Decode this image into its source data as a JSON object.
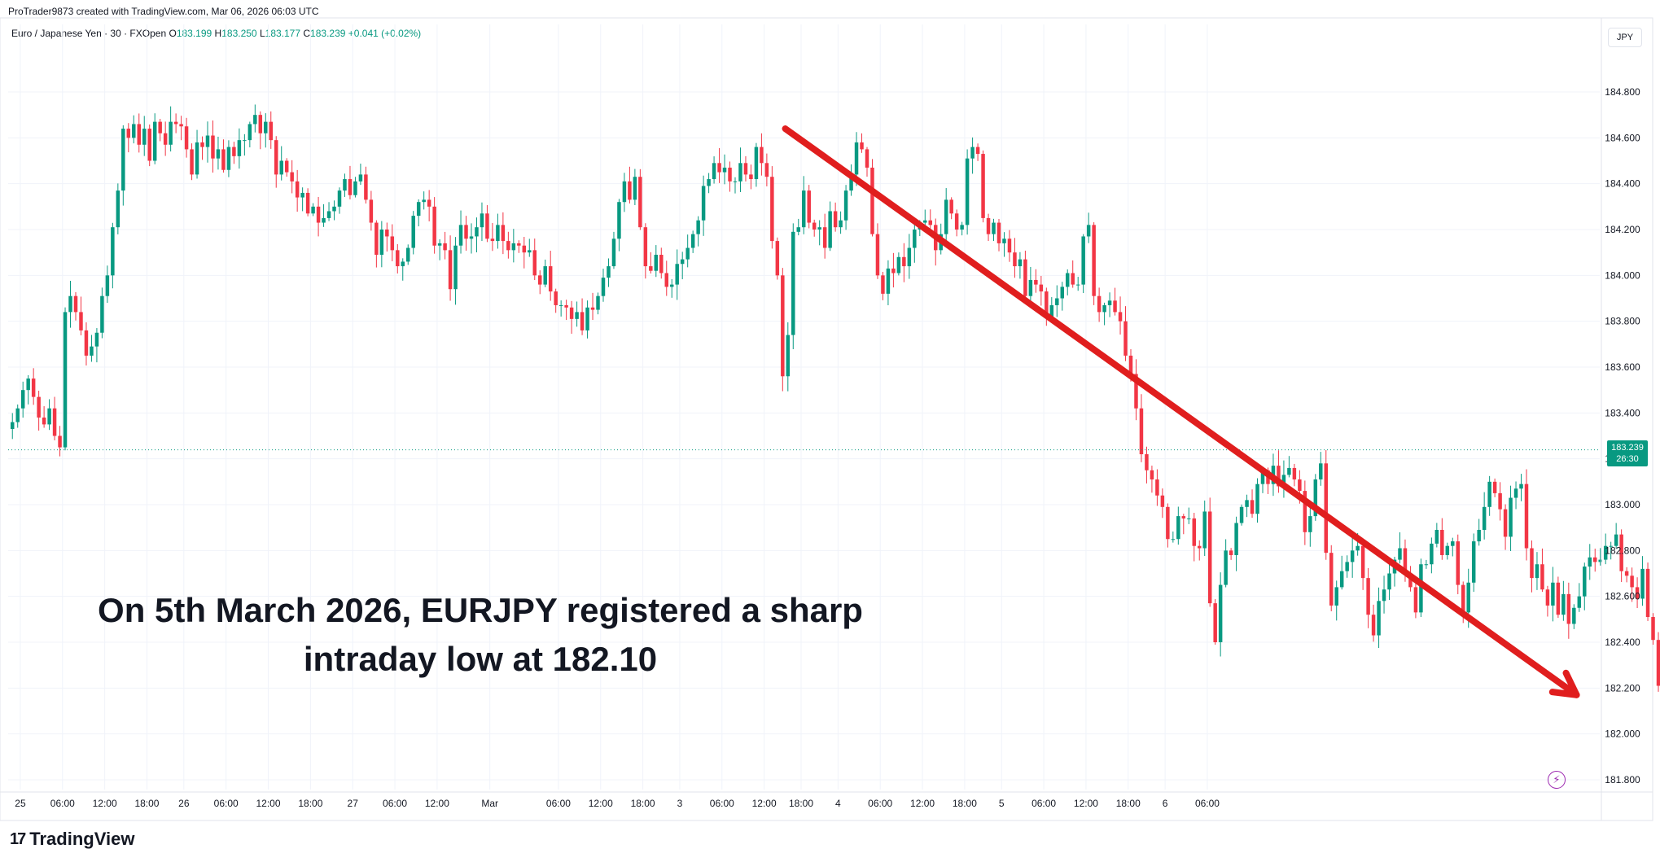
{
  "header": {
    "attribution": "ProTrader9873 created with TradingView.com, Mar 06, 2026 06:03 UTC"
  },
  "legend": {
    "symbol": "Euro / Japanese Yen · 30 · FXOpen",
    "open_label": "O",
    "open": "183.199",
    "high_label": "H",
    "high": "183.250",
    "low_label": "L",
    "low": "183.177",
    "close_label": "C",
    "close": "183.239",
    "change": "+0.041 (+0.02%)"
  },
  "currency": "JPY",
  "price_tag": {
    "price": "183.239",
    "countdown": "26:30"
  },
  "annotation": {
    "line1": "On 5th March 2026, EURJPY registered a sharp",
    "line2": "intraday low at 182.10"
  },
  "branding": {
    "logo": "17",
    "name": "TradingView"
  },
  "colors": {
    "up": "#089981",
    "down": "#f23645",
    "arrow": "#e01e1e",
    "grid": "#f0f3fa",
    "axis_text": "#131722"
  },
  "chart_data": {
    "type": "candlestick",
    "interval": "30",
    "ylim": [
      181.8,
      184.9
    ],
    "y_ticks": [
      "184.800",
      "184.600",
      "184.400",
      "184.200",
      "184.000",
      "183.800",
      "183.600",
      "183.400",
      "183.200",
      "183.000",
      "182.800",
      "182.600",
      "182.400",
      "182.200",
      "182.000",
      "181.800"
    ],
    "x_ticks": [
      "25",
      "06:00",
      "12:00",
      "18:00",
      "26",
      "06:00",
      "12:00",
      "18:00",
      "27",
      "06:00",
      "12:00",
      "Mar",
      "06:00",
      "12:00",
      "18:00",
      "3",
      "06:00",
      "12:00",
      "18:00",
      "4",
      "06:00",
      "12:00",
      "18:00",
      "5",
      "06:00",
      "12:00",
      "18:00",
      "6",
      "06:00"
    ],
    "last_price": 183.239,
    "annotation_arrow": {
      "from": {
        "bar_index": 147,
        "price": 184.64
      },
      "to": {
        "bar_index": 297,
        "price": 182.17
      }
    },
    "closes": [
      183.36,
      183.42,
      183.5,
      183.55,
      183.47,
      183.38,
      183.35,
      183.42,
      183.3,
      183.25,
      183.84,
      183.91,
      183.84,
      183.76,
      183.65,
      183.69,
      183.75,
      183.91,
      184.0,
      184.21,
      184.37,
      184.64,
      184.6,
      184.66,
      184.57,
      184.64,
      184.5,
      184.67,
      184.62,
      184.57,
      184.67,
      184.66,
      184.65,
      184.55,
      184.44,
      184.58,
      184.56,
      184.61,
      184.51,
      184.55,
      184.46,
      184.56,
      184.52,
      184.59,
      184.59,
      184.66,
      184.7,
      184.62,
      184.67,
      184.59,
      184.44,
      184.5,
      184.45,
      184.41,
      184.34,
      184.36,
      184.27,
      184.3,
      184.23,
      184.25,
      184.28,
      184.3,
      184.37,
      184.42,
      184.35,
      184.41,
      184.44,
      184.33,
      184.23,
      184.09,
      184.2,
      184.17,
      184.11,
      184.04,
      184.06,
      184.12,
      184.26,
      184.32,
      184.33,
      184.3,
      184.13,
      184.14,
      184.11,
      183.94,
      184.13,
      184.22,
      184.16,
      184.17,
      184.21,
      184.27,
      184.16,
      184.15,
      184.22,
      184.15,
      184.11,
      184.14,
      184.13,
      184.1,
      184.11,
      184.0,
      183.96,
      184.04,
      183.93,
      183.87,
      183.87,
      183.86,
      183.81,
      183.84,
      183.76,
      183.86,
      183.85,
      183.91,
      183.99,
      184.04,
      184.16,
      184.32,
      184.41,
      184.33,
      184.43,
      184.21,
      184.04,
      184.02,
      184.09,
      184.01,
      183.95,
      183.96,
      184.05,
      184.07,
      184.12,
      184.18,
      184.24,
      184.39,
      184.42,
      184.49,
      184.45,
      184.47,
      184.41,
      184.41,
      184.49,
      184.44,
      184.42,
      184.56,
      184.49,
      184.43,
      184.15,
      184.0,
      183.56,
      183.74,
      184.19,
      184.21,
      184.37,
      184.23,
      184.2,
      184.21,
      184.12,
      184.28,
      184.21,
      184.24,
      184.37,
      184.44,
      184.58,
      184.55,
      184.47,
      184.18,
      184.0,
      183.92,
      184.03,
      184.01,
      184.08,
      184.04,
      184.12,
      184.2,
      184.23,
      184.24,
      184.22,
      184.11,
      184.18,
      184.33,
      184.27,
      184.2,
      184.22,
      184.51,
      184.56,
      184.53,
      184.25,
      184.18,
      184.23,
      184.14,
      184.16,
      184.1,
      184.04,
      184.07,
      183.91,
      183.98,
      183.96,
      183.93,
      183.82,
      183.87,
      183.9,
      183.95,
      184.01,
      183.96,
      183.96,
      184.17,
      184.22,
      183.91,
      183.84,
      183.87,
      183.89,
      183.84,
      183.8,
      183.65,
      183.57,
      183.42,
      183.22,
      183.15,
      183.11,
      183.04,
      182.99,
      182.85,
      182.85,
      182.95,
      182.94,
      182.94,
      182.82,
      182.81,
      182.97,
      182.57,
      182.4,
      182.65,
      182.8,
      182.78,
      182.92,
      182.99,
      183.02,
      182.96,
      183.09,
      183.15,
      183.09,
      183.17,
      183.08,
      183.13,
      183.16,
      183.11,
      183.06,
      182.88,
      182.95,
      183.11,
      183.18,
      182.79,
      182.56,
      182.64,
      182.71,
      182.75,
      182.8,
      182.82,
      182.68,
      182.52,
      182.43,
      182.58,
      182.63,
      182.7,
      182.76,
      182.81,
      182.7,
      182.64,
      182.53,
      182.74,
      182.74,
      182.83,
      182.89,
      182.78,
      182.82,
      182.84,
      182.65,
      182.53,
      182.66,
      182.84,
      182.89,
      182.99,
      183.1,
      183.05,
      182.98,
      182.86,
      183.03,
      183.07,
      183.09,
      182.81,
      182.68,
      182.74,
      182.63,
      182.56,
      182.66,
      182.52,
      182.61,
      182.48,
      182.55,
      182.6,
      182.73,
      182.77,
      182.75,
      182.76,
      182.82,
      182.82,
      182.87,
      182.71,
      182.69,
      182.64,
      182.59,
      182.72,
      182.51,
      182.41,
      182.21,
      182.22,
      182.29,
      182.42,
      182.33,
      182.26,
      182.41,
      182.31,
      182.37,
      182.3,
      182.37,
      182.36,
      182.3,
      182.2,
      182.18,
      182.34,
      182.37,
      182.27,
      182.37,
      182.45,
      182.59,
      182.62,
      182.59,
      182.66,
      182.62,
      182.67,
      182.72,
      182.83,
      182.88,
      183.01,
      182.97,
      182.94,
      182.9,
      182.8,
      182.6,
      182.52,
      182.42,
      182.46,
      182.7,
      182.64,
      182.57,
      182.63,
      182.78,
      182.71,
      182.75,
      182.69,
      182.78,
      182.82,
      182.78,
      182.82,
      182.84,
      182.91,
      182.76,
      182.89,
      182.96,
      182.8,
      182.89,
      183.0,
      183.05,
      183.08,
      183.16,
      183.2,
      183.24
    ]
  }
}
